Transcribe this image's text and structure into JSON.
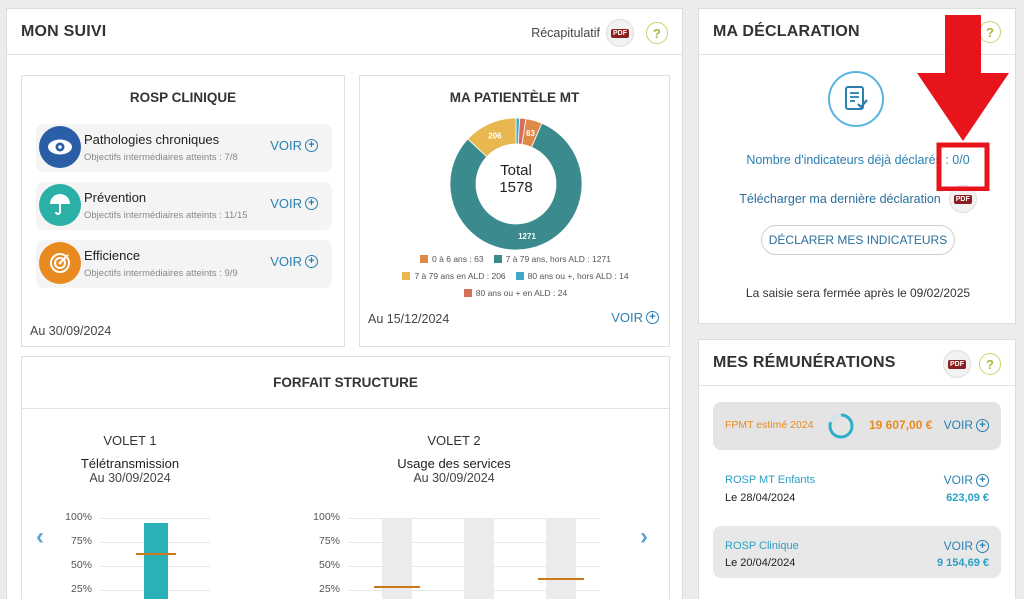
{
  "mon_suivi": {
    "title": "MON SUIVI",
    "recap_label": "Récapitulatif",
    "pdf_label": "PDF",
    "help": "?"
  },
  "rosp_clinique": {
    "title": "ROSP CLINIQUE",
    "items": [
      {
        "name": "Pathologies chroniques",
        "sub": "Objectifs intermédiaires atteints : 7/8",
        "voir": "VOIR",
        "icon": "eye-icon",
        "color": "#2a5fa8"
      },
      {
        "name": "Prévention",
        "sub": "Objectifs intermédiaires atteints : 11/15",
        "voir": "VOIR",
        "icon": "umbrella-icon",
        "color": "#2bb0a8"
      },
      {
        "name": "Efficience",
        "sub": "Objectifs intermédiaires atteints : 9/9",
        "voir": "VOIR",
        "icon": "target-icon",
        "color": "#e88a1f"
      }
    ],
    "date": "Au 30/09/2024"
  },
  "patientele": {
    "title": "MA PATIENTÈLE MT",
    "total_label": "Total",
    "total_value": "1578",
    "date": "Au 15/12/2024",
    "voir": "VOIR",
    "legend": [
      {
        "label": "0 à 6 ans : 63",
        "color": "#e08a4a"
      },
      {
        "label": "7 à 79 ans, hors ALD : 1271",
        "color": "#3a8a8e"
      },
      {
        "label": "7 à 79 ans en ALD : 206",
        "color": "#e9b74f"
      },
      {
        "label": "80 ans ou +, hors ALD : 14",
        "color": "#3fa8c8"
      },
      {
        "label": "80 ans ou + en ALD : 24",
        "color": "#d46f5c"
      }
    ],
    "slice_labels": [
      "63",
      "1271",
      "206"
    ]
  },
  "chart_data": {
    "type": "pie",
    "title": "MA PATIENTÈLE MT",
    "categories": [
      "0 à 6 ans",
      "7 à 79 ans, hors ALD",
      "7 à 79 ans en ALD",
      "80 ans ou +, hors ALD",
      "80 ans ou + en ALD"
    ],
    "values": [
      63,
      1271,
      206,
      14,
      24
    ],
    "colors": [
      "#e08a4a",
      "#3a8a8e",
      "#e9b74f",
      "#3fa8c8",
      "#d46f5c"
    ]
  },
  "forfait": {
    "title": "FORFAIT STRUCTURE",
    "volet1": {
      "title": "VOLET 1",
      "sub": "Télétransmission",
      "date": "Au 30/09/2024",
      "bar_value": 0.95,
      "target": 0.64
    },
    "volet2": {
      "title": "VOLET 2",
      "sub": "Usage des services",
      "date": "Au 30/09/2024",
      "targets": [
        0.29,
        0,
        0.38
      ]
    },
    "ticks": [
      "100%",
      "75%",
      "50%",
      "25%"
    ]
  },
  "declaration": {
    "title": "MA DÉCLARATION",
    "help": "?",
    "indicateurs_label": "Nombre d'indicateurs déjà déclarés :",
    "indicateurs_value": "0/0",
    "download_label": "Télécharger ma dernière déclaration",
    "pdf_label": "PDF",
    "button_label": "DÉCLARER MES INDICATEURS",
    "close_note": "La saisie sera fermée après le 09/02/2025"
  },
  "remunerations": {
    "title": "MES RÉMUNÉRATIONS",
    "pdf_label": "PDF",
    "help": "?",
    "fpmt": {
      "label": "FPMT estimé 2024",
      "amount": "19 607,00 €",
      "voir": "VOIR",
      "progress": 0.8
    },
    "items": [
      {
        "label": "ROSP MT Enfants",
        "date": "Le 28/04/2024",
        "amount": "623,09 €",
        "voir": "VOIR"
      },
      {
        "label": "ROSP Clinique",
        "date": "Le 20/04/2024",
        "amount": "9 154,69 €",
        "voir": "VOIR"
      }
    ]
  },
  "colors": {
    "accent_blue": "#2a7fb0",
    "teal": "#2bb0b8",
    "orange": "#e88a1f",
    "red_annotation": "#e8141c"
  }
}
